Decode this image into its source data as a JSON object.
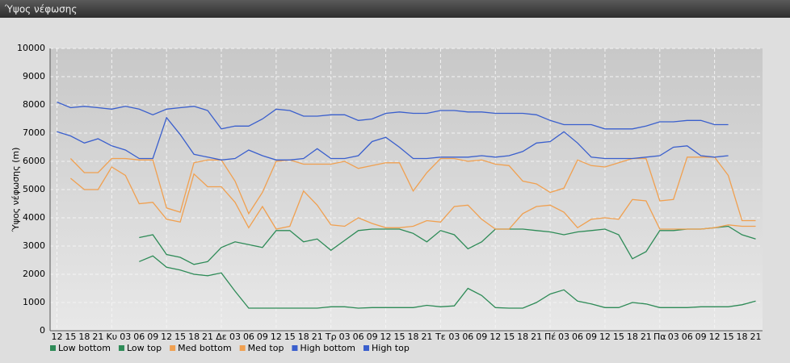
{
  "chart_data": {
    "type": "line",
    "title": "Ύψος νέφωσης",
    "ylabel": "Ύψος νέφωσης (m)",
    "categories": [
      "12",
      "15",
      "18",
      "21",
      "Κυ",
      "03",
      "06",
      "09",
      "12",
      "15",
      "18",
      "21",
      "Δε",
      "03",
      "06",
      "09",
      "12",
      "15",
      "18",
      "21",
      "Τρ",
      "03",
      "06",
      "09",
      "12",
      "15",
      "18",
      "21",
      "Τε",
      "03",
      "06",
      "09",
      "12",
      "15",
      "18",
      "21",
      "Πέ",
      "03",
      "06",
      "09",
      "12",
      "15",
      "18",
      "21",
      "Πα",
      "03",
      "06",
      "09",
      "12",
      "15",
      "18",
      "21"
    ],
    "ylim": [
      0,
      10000
    ],
    "yticks": [
      0,
      1000,
      2000,
      3000,
      4000,
      5000,
      6000,
      7000,
      8000,
      9000,
      10000
    ],
    "grid": true,
    "legend": "bottom",
    "series": [
      {
        "name": "Low bottom",
        "color": "#2e8b57",
        "values": [
          null,
          null,
          null,
          null,
          null,
          null,
          2450,
          2650,
          2250,
          2150,
          2000,
          1950,
          2050,
          1400,
          800,
          800,
          800,
          800,
          800,
          800,
          850,
          850,
          800,
          820,
          820,
          820,
          820,
          900,
          850,
          880,
          1500,
          1250,
          820,
          800,
          800,
          1000,
          1300,
          1450,
          1050,
          950,
          820,
          820,
          1000,
          950,
          820,
          820,
          820,
          850,
          850,
          850,
          920,
          1050
        ]
      },
      {
        "name": "Low top",
        "color": "#2e8b57",
        "values": [
          null,
          null,
          null,
          null,
          null,
          null,
          3300,
          3400,
          2700,
          2600,
          2350,
          2450,
          2950,
          3150,
          3050,
          2950,
          3550,
          3550,
          3150,
          3250,
          2850,
          3200,
          3550,
          3600,
          3600,
          3600,
          3450,
          3150,
          3550,
          3400,
          2900,
          3150,
          3600,
          3600,
          3600,
          3550,
          3500,
          3400,
          3500,
          3550,
          3600,
          3400,
          2550,
          2800,
          3550,
          3550,
          3600,
          3600,
          3650,
          3700,
          3400,
          3250
        ]
      },
      {
        "name": "Med bottom",
        "color": "#f0a050",
        "values": [
          null,
          5400,
          5000,
          5000,
          5800,
          5500,
          4500,
          4550,
          3950,
          3850,
          5550,
          5100,
          5100,
          4550,
          3650,
          4400,
          3600,
          3700,
          4950,
          4450,
          3750,
          3700,
          4000,
          3800,
          3650,
          3650,
          3700,
          3900,
          3850,
          4400,
          4450,
          3950,
          3600,
          3600,
          4150,
          4400,
          4450,
          4200,
          3650,
          3950,
          4000,
          3950,
          4650,
          4600,
          3600,
          3600,
          3600,
          3600,
          3650,
          3750,
          3700,
          3700
        ]
      },
      {
        "name": "Med top",
        "color": "#f0a050",
        "values": [
          null,
          6100,
          5600,
          5600,
          6100,
          6100,
          6050,
          6050,
          4350,
          4200,
          5950,
          6050,
          6050,
          5300,
          4150,
          4900,
          6000,
          6050,
          5900,
          5900,
          5900,
          6000,
          5750,
          5850,
          5950,
          5950,
          4950,
          5600,
          6100,
          6100,
          6000,
          6050,
          5900,
          5850,
          5300,
          5200,
          4900,
          5050,
          6050,
          5850,
          5800,
          5950,
          6100,
          6100,
          4600,
          4650,
          6150,
          6150,
          6150,
          5500,
          3900,
          3900
        ]
      },
      {
        "name": "High bottom",
        "color": "#3a5fcd",
        "values": [
          7050,
          6900,
          6650,
          6800,
          6550,
          6400,
          6100,
          6100,
          7550,
          6950,
          6250,
          6150,
          6050,
          6100,
          6400,
          6200,
          6050,
          6050,
          6100,
          6450,
          6100,
          6100,
          6200,
          6700,
          6850,
          6500,
          6100,
          6100,
          6150,
          6150,
          6150,
          6200,
          6150,
          6200,
          6350,
          6650,
          6700,
          7050,
          6650,
          6150,
          6100,
          6100,
          6100,
          6150,
          6200,
          6500,
          6550,
          6200,
          6150,
          6200,
          null,
          null
        ]
      },
      {
        "name": "High top",
        "color": "#3a5fcd",
        "values": [
          8100,
          7900,
          7950,
          7900,
          7850,
          7950,
          7850,
          7650,
          7850,
          7900,
          7950,
          7800,
          7150,
          7250,
          7250,
          7500,
          7850,
          7800,
          7600,
          7600,
          7650,
          7650,
          7450,
          7500,
          7700,
          7750,
          7700,
          7700,
          7800,
          7800,
          7750,
          7750,
          7700,
          7700,
          7700,
          7650,
          7450,
          7300,
          7300,
          7300,
          7150,
          7150,
          7150,
          7250,
          7400,
          7400,
          7450,
          7450,
          7300,
          7300,
          null,
          null
        ]
      }
    ]
  }
}
